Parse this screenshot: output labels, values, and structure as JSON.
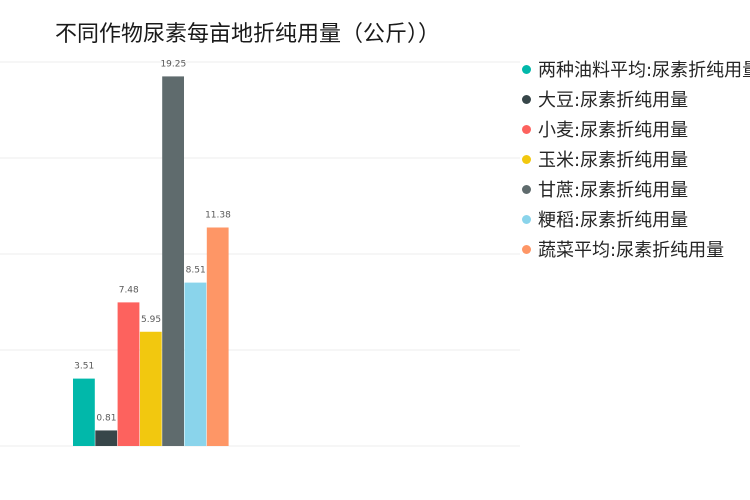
{
  "chart_data": {
    "type": "bar",
    "title": "不同作物尿素每亩地折纯用量（公斤））",
    "ylim": [
      0,
      20
    ],
    "grid": true,
    "legend_position": "right",
    "series": [
      {
        "name": "两种油料平均:尿素折纯用量",
        "value": 3.51,
        "label": "3.51",
        "color": "#01b8aa"
      },
      {
        "name": "大豆:尿素折纯用量",
        "value": 0.81,
        "label": "0.81",
        "color": "#374649"
      },
      {
        "name": "小麦:尿素折纯用量",
        "value": 7.48,
        "label": "7.48",
        "color": "#fd625e"
      },
      {
        "name": "玉米:尿素折纯用量",
        "value": 5.95,
        "label": "5.95",
        "color": "#f2c80f"
      },
      {
        "name": "甘蔗:尿素折纯用量",
        "value": 19.25,
        "label": "19.25",
        "color": "#5f6b6d"
      },
      {
        "name": "粳稻:尿素折纯用量",
        "value": 8.51,
        "label": "8.51",
        "color": "#8ad4eb"
      },
      {
        "name": "蔬菜平均:尿素折纯用量",
        "value": 11.38,
        "label": "11.38",
        "color": "#fe9666"
      }
    ]
  }
}
